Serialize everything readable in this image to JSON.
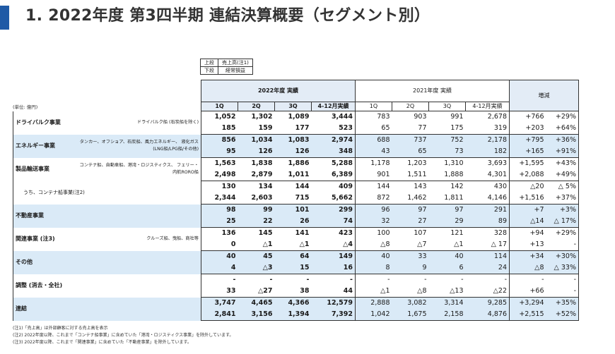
{
  "header": {
    "title": "1. 2022年度 第3四半期 連結決算概要（セグメント別）"
  },
  "legend": {
    "top": "上段",
    "top_desc": "売上高(注1)",
    "bottom": "下段",
    "bottom_desc": "経常損益"
  },
  "unit_label": "(単位: 億円)",
  "columns": {
    "current_group": "2022年度 実績",
    "prior_group": "2021年度 実績",
    "change_group": "増減",
    "quarters": [
      "1Q",
      "2Q",
      "3Q",
      "4-12月実績"
    ]
  },
  "segments": [
    {
      "name": "ドライバルク事業",
      "sub": "ドライバルク船\n(石炭船を除く)",
      "shaded": false,
      "r1": [
        "1,052",
        "1,302",
        "1,089",
        "3,444",
        "783",
        "903",
        "991",
        "2,678",
        "+766",
        "+29%"
      ],
      "r2": [
        "185",
        "159",
        "177",
        "523",
        "65",
        "77",
        "175",
        "319",
        "+203",
        "+64%"
      ]
    },
    {
      "name": "エネルギー事業",
      "sub": "タンカー、オフショア、石炭船、風力エネルギー、\n液化ガス(LNG船/LPG船/その他)",
      "shaded": true,
      "r1": [
        "856",
        "1,034",
        "1,083",
        "2,974",
        "688",
        "737",
        "752",
        "2,178",
        "+795",
        "+36%"
      ],
      "r2": [
        "95",
        "126",
        "126",
        "348",
        "43",
        "65",
        "73",
        "182",
        "+165",
        "+91%"
      ]
    },
    {
      "name": "製品輸送事業",
      "sub": "コンテナ船、自動車船、港湾・ロジスティクス、\nフェリー・内航RORO船",
      "shaded": false,
      "r1": [
        "1,563",
        "1,838",
        "1,886",
        "5,288",
        "1,178",
        "1,203",
        "1,310",
        "3,693",
        "+1,595",
        "+43%"
      ],
      "r2": [
        "2,498",
        "2,879",
        "1,011",
        "6,389",
        "901",
        "1,511",
        "1,888",
        "4,301",
        "+2,088",
        "+49%"
      ]
    },
    {
      "name": "うち、コンテナ船事業(注2)",
      "sub": "",
      "shaded": false,
      "indent": true,
      "r1": [
        "130",
        "134",
        "144",
        "409",
        "144",
        "143",
        "142",
        "430",
        "△20",
        "△ 5%"
      ],
      "r2": [
        "2,344",
        "2,603",
        "715",
        "5,662",
        "872",
        "1,462",
        "1,811",
        "4,146",
        "+1,516",
        "+37%"
      ]
    },
    {
      "name": "不動産事業",
      "sub": "",
      "shaded": true,
      "r1": [
        "98",
        "99",
        "101",
        "299",
        "96",
        "97",
        "97",
        "291",
        "+7",
        "+3%"
      ],
      "r2": [
        "25",
        "22",
        "26",
        "74",
        "32",
        "27",
        "29",
        "89",
        "△14",
        "△ 17%"
      ]
    },
    {
      "name": "関連事業 (注3)",
      "sub": "クルーズ船、曳船、商社等",
      "shaded": false,
      "r1": [
        "136",
        "145",
        "141",
        "423",
        "100",
        "107",
        "121",
        "328",
        "+94",
        "+29%"
      ],
      "r2": [
        "0",
        "△1",
        "△1",
        "△4",
        "△8",
        "△7",
        "△1",
        "△ 17",
        "+13",
        "-"
      ]
    },
    {
      "name": "その他",
      "sub": "",
      "shaded": true,
      "r1": [
        "40",
        "45",
        "64",
        "149",
        "40",
        "33",
        "40",
        "114",
        "+34",
        "+30%"
      ],
      "r2": [
        "4",
        "△3",
        "15",
        "16",
        "8",
        "9",
        "6",
        "24",
        "△8",
        "△ 33%"
      ]
    },
    {
      "name": "調整 (消去・全社)",
      "sub": "",
      "shaded": false,
      "r1": [
        "-",
        "-",
        "-",
        "-",
        "-",
        "-",
        "-",
        "-",
        "-",
        "-"
      ],
      "r2": [
        "33",
        "△27",
        "38",
        "44",
        "△1",
        "△8",
        "△13",
        "△22",
        "+66",
        "-"
      ]
    },
    {
      "name": "連結",
      "sub": "",
      "shaded": true,
      "r1": [
        "3,747",
        "4,465",
        "4,366",
        "12,579",
        "2,888",
        "3,082",
        "3,314",
        "9,285",
        "+3,294",
        "+35%"
      ],
      "r2": [
        "2,841",
        "3,156",
        "1,394",
        "7,392",
        "1,042",
        "1,675",
        "2,158",
        "4,876",
        "+2,515",
        "+52%"
      ]
    }
  ],
  "notes": [
    "(注1)「売上高」は外部顧客に対する売上高を表示",
    "(注2) 2022年度以降、これまで「コンテナ船事業」に含めていた「港湾・ロジスティクス事業」を除外しています。",
    "(注3) 2022年度以降、これまで「関連事業」に含めていた「不動産事業」を除外しています。"
  ]
}
